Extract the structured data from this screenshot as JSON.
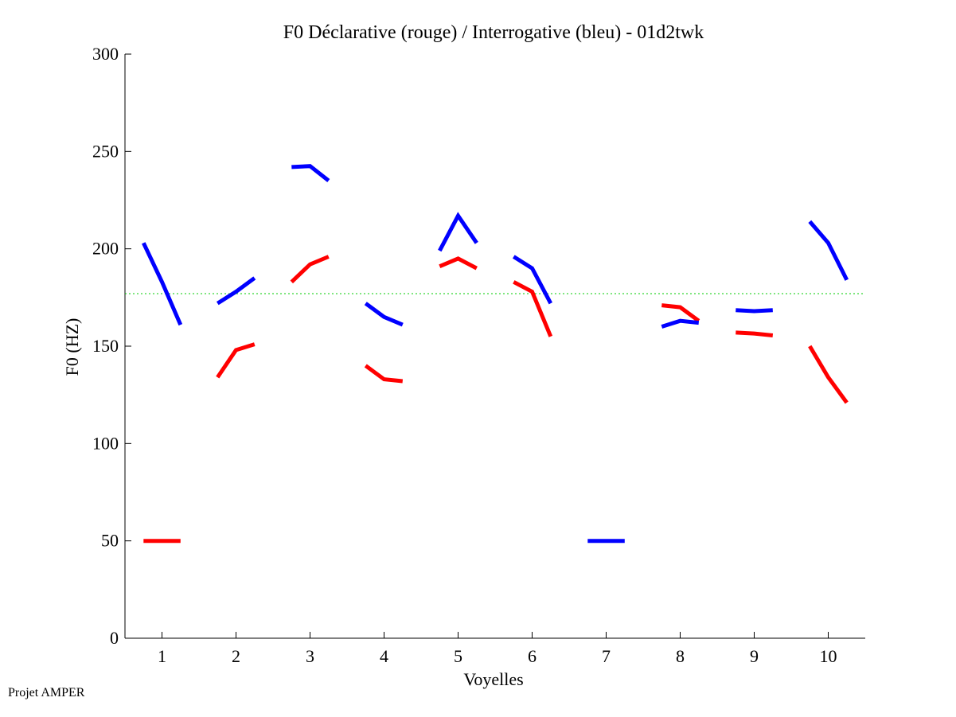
{
  "chart_data": {
    "type": "line",
    "title": "F0 Déclarative (rouge) / Interrogative (bleu) - 01d2twk",
    "xlabel": "Voyelles",
    "ylabel": "F0 (HZ)",
    "xlim": [
      0.5,
      10.5
    ],
    "ylim": [
      0,
      300
    ],
    "xticks": [
      1,
      2,
      3,
      4,
      5,
      6,
      7,
      8,
      9,
      10
    ],
    "yticks": [
      0,
      50,
      100,
      150,
      200,
      250,
      300
    ],
    "reference_line": {
      "y": 177,
      "style": "dotted",
      "color": "#00cc00"
    },
    "series": [
      {
        "name": "Déclarative",
        "color": "#ff0000",
        "segments": [
          {
            "vowel": 1,
            "points": [
              [
                0.75,
                50
              ],
              [
                1.25,
                50
              ]
            ]
          },
          {
            "vowel": 2,
            "points": [
              [
                1.75,
                134
              ],
              [
                2.0,
                148
              ],
              [
                2.25,
                151
              ]
            ]
          },
          {
            "vowel": 3,
            "points": [
              [
                2.75,
                183
              ],
              [
                3.0,
                192
              ],
              [
                3.25,
                196
              ]
            ]
          },
          {
            "vowel": 4,
            "points": [
              [
                3.75,
                140
              ],
              [
                4.0,
                133
              ],
              [
                4.25,
                132
              ]
            ]
          },
          {
            "vowel": 5,
            "points": [
              [
                4.75,
                191
              ],
              [
                5.0,
                195
              ],
              [
                5.25,
                190
              ]
            ]
          },
          {
            "vowel": 6,
            "points": [
              [
                5.75,
                183
              ],
              [
                6.0,
                178
              ],
              [
                6.25,
                155
              ]
            ]
          },
          {
            "vowel": 8,
            "points": [
              [
                7.75,
                171
              ],
              [
                8.0,
                170
              ],
              [
                8.25,
                163
              ]
            ]
          },
          {
            "vowel": 9,
            "points": [
              [
                8.75,
                157
              ],
              [
                9.0,
                156.5
              ],
              [
                9.25,
                155.5
              ]
            ]
          },
          {
            "vowel": 10,
            "points": [
              [
                9.75,
                150
              ],
              [
                10.0,
                134
              ],
              [
                10.25,
                121
              ]
            ]
          }
        ]
      },
      {
        "name": "Interrogative",
        "color": "#0000ff",
        "segments": [
          {
            "vowel": 1,
            "points": [
              [
                0.75,
                203
              ],
              [
                1.0,
                183
              ],
              [
                1.25,
                161
              ]
            ]
          },
          {
            "vowel": 2,
            "points": [
              [
                1.75,
                172
              ],
              [
                2.0,
                178
              ],
              [
                2.25,
                185
              ]
            ]
          },
          {
            "vowel": 3,
            "points": [
              [
                2.75,
                242
              ],
              [
                3.0,
                242.5
              ],
              [
                3.25,
                235
              ]
            ]
          },
          {
            "vowel": 4,
            "points": [
              [
                3.75,
                172
              ],
              [
                4.0,
                165
              ],
              [
                4.25,
                161
              ]
            ]
          },
          {
            "vowel": 5,
            "points": [
              [
                4.75,
                199
              ],
              [
                5.0,
                217
              ],
              [
                5.25,
                203
              ]
            ]
          },
          {
            "vowel": 6,
            "points": [
              [
                5.75,
                196
              ],
              [
                6.0,
                190
              ],
              [
                6.25,
                172
              ]
            ]
          },
          {
            "vowel": 7,
            "points": [
              [
                6.75,
                50
              ],
              [
                7.25,
                50
              ]
            ]
          },
          {
            "vowel": 8,
            "points": [
              [
                7.75,
                160
              ],
              [
                8.0,
                163
              ],
              [
                8.25,
                162
              ]
            ]
          },
          {
            "vowel": 9,
            "points": [
              [
                8.75,
                168.5
              ],
              [
                9.0,
                168
              ],
              [
                9.25,
                168.5
              ]
            ]
          },
          {
            "vowel": 10,
            "points": [
              [
                9.75,
                214
              ],
              [
                10.0,
                203
              ],
              [
                10.25,
                184
              ]
            ]
          }
        ]
      }
    ]
  },
  "footer": {
    "text": "Projet AMPER"
  }
}
